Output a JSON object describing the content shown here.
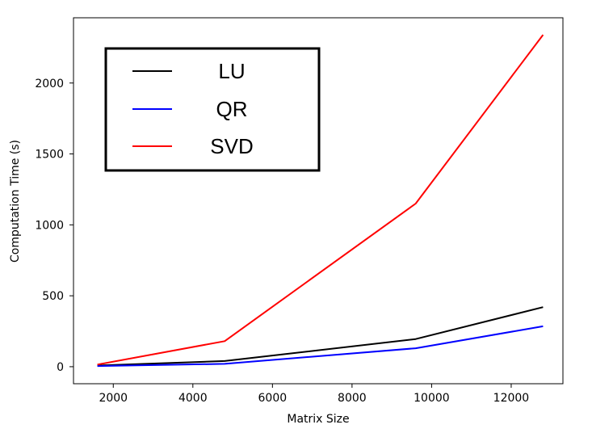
{
  "chart_data": {
    "type": "line",
    "x": [
      1600,
      4800,
      9600,
      12800
    ],
    "series": [
      {
        "name": "LU",
        "color": "#000000",
        "values": [
          8,
          40,
          195,
          420
        ]
      },
      {
        "name": "QR",
        "color": "#0000ff",
        "values": [
          5,
          20,
          130,
          285
        ]
      },
      {
        "name": "SVD",
        "color": "#ff0000",
        "values": [
          15,
          180,
          1150,
          2340
        ]
      }
    ],
    "xlabel": "Matrix Size",
    "ylabel": "Computation Time (s)",
    "xlim": [
      1000,
      13300
    ],
    "ylim": [
      -120,
      2460
    ],
    "xticks": [
      2000,
      4000,
      6000,
      8000,
      10000,
      12000
    ],
    "yticks": [
      0,
      500,
      1000,
      1500,
      2000
    ],
    "grid": false,
    "legend_position": "top-left"
  }
}
